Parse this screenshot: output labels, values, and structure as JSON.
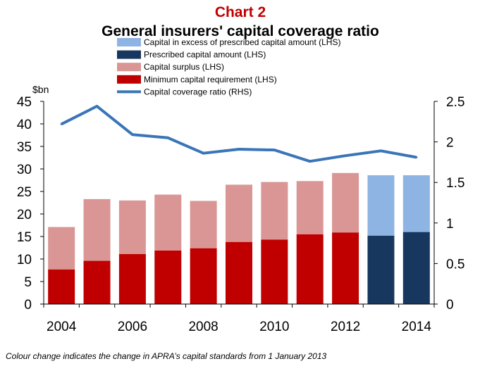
{
  "chart_data": {
    "type": "bar",
    "title": "Chart 2",
    "subtitle": "General insurers' capital coverage ratio",
    "ylabel": "$bn",
    "categories": [
      "2004",
      "2005",
      "2006",
      "2007",
      "2008",
      "2009",
      "2010",
      "2011",
      "2012",
      "2013",
      "2014"
    ],
    "x_tick_labels": [
      "2004",
      "2006",
      "2008",
      "2010",
      "2012",
      "2014"
    ],
    "left_axis": {
      "ylim": [
        0,
        45
      ],
      "ticks": [
        "0",
        "5",
        "10",
        "15",
        "20",
        "25",
        "30",
        "35",
        "40",
        "45"
      ]
    },
    "right_axis": {
      "ylim": [
        0,
        2.5
      ],
      "ticks": [
        "0",
        "0.5",
        "1",
        "1.5",
        "2",
        "2.5"
      ]
    },
    "grid": false,
    "legend_position": "top",
    "series": [
      {
        "name": "Capital in excess of prescribed capital amount (LHS)",
        "axis": "left",
        "kind": "bar-stack-top",
        "color": "#8eb4e3",
        "values": [
          null,
          null,
          null,
          null,
          null,
          null,
          null,
          null,
          null,
          13.4,
          12.6
        ]
      },
      {
        "name": "Prescribed capital amount (LHS)",
        "axis": "left",
        "kind": "bar-stack-base",
        "color": "#17375e",
        "values": [
          null,
          null,
          null,
          null,
          null,
          null,
          null,
          null,
          null,
          15.2,
          16.0
        ]
      },
      {
        "name": "Capital surplus (LHS)",
        "axis": "left",
        "kind": "bar-stack-top",
        "color": "#d99694",
        "values": [
          9.4,
          13.7,
          11.9,
          12.4,
          10.5,
          12.7,
          12.8,
          11.8,
          13.2,
          null,
          null
        ]
      },
      {
        "name": "Minimum capital requirement (LHS)",
        "axis": "left",
        "kind": "bar-stack-base",
        "color": "#c00000",
        "values": [
          7.7,
          9.6,
          11.1,
          11.9,
          12.4,
          13.8,
          14.3,
          15.5,
          15.9,
          null,
          null
        ]
      },
      {
        "name": "Capital coverage ratio (RHS)",
        "axis": "right",
        "kind": "line",
        "color": "#3a75b8",
        "values": [
          2.22,
          2.44,
          2.09,
          2.05,
          1.86,
          1.91,
          1.9,
          1.76,
          1.83,
          1.89,
          1.81
        ]
      }
    ],
    "legend_order": [
      "Capital in excess of prescribed capital amount (LHS)",
      "Prescribed capital amount (LHS)",
      "Capital surplus (LHS)",
      "Minimum capital requirement (LHS)",
      "Capital coverage ratio (RHS)"
    ],
    "footnote": "Colour change indicates the change in APRA’s capital standards from 1 January 2013"
  },
  "colors": {
    "title": "#c00000",
    "axis": "#000000"
  }
}
